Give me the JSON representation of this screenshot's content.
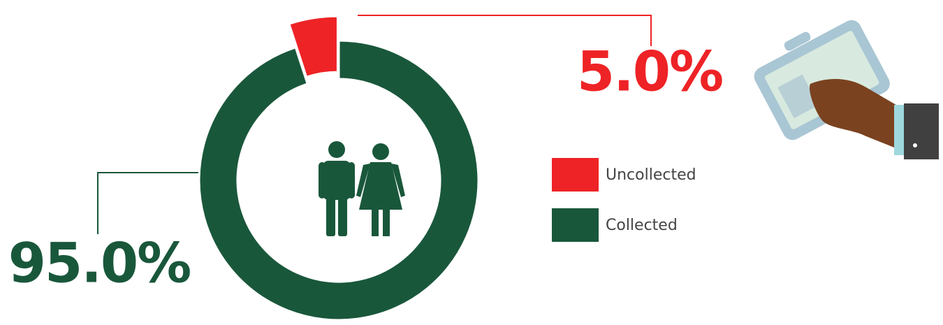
{
  "chart_data": {
    "type": "pie",
    "categories": [
      "Uncollected",
      "Collected"
    ],
    "values": [
      5.0,
      95.0
    ],
    "value_labels": [
      "5.0%",
      "95.0%"
    ],
    "colors": [
      "#ee2326",
      "#19573b"
    ]
  }
}
